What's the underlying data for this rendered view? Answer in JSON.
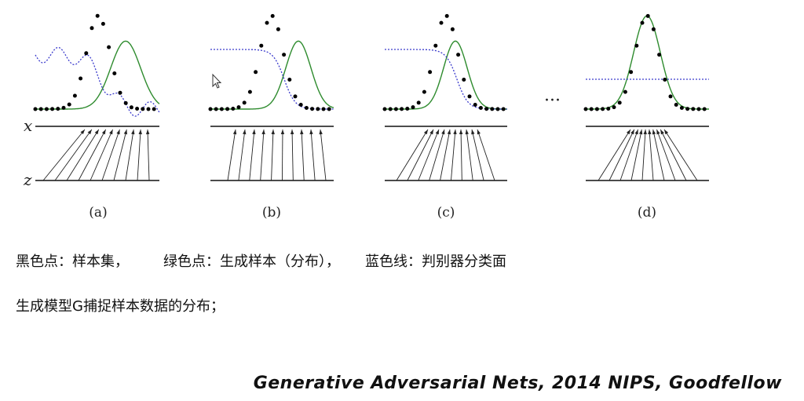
{
  "figure": {
    "panels": [
      {
        "id": "a",
        "label": "(a)"
      },
      {
        "id": "b",
        "label": "(b)"
      },
      {
        "id": "c",
        "label": "(c)"
      },
      {
        "id": "d",
        "label": "(d)"
      }
    ],
    "axis_x_label": "x",
    "axis_z_label": "z",
    "ellipsis": "···",
    "colors": {
      "data_dots": "#000000",
      "generator_curve": "#2e8b2e",
      "discriminator_line": "#3a3acc",
      "arrows": "#222222"
    }
  },
  "captions": {
    "legend": {
      "real": "黑色点：样本集，",
      "generated": "绿色点：生成样本（分布），",
      "discriminator": "蓝色线：判别器分类面"
    },
    "description": "生成模型G捕捉样本数据的分布；",
    "citation": "Generative Adversarial Nets, 2014 NIPS, Goodfellow"
  }
}
